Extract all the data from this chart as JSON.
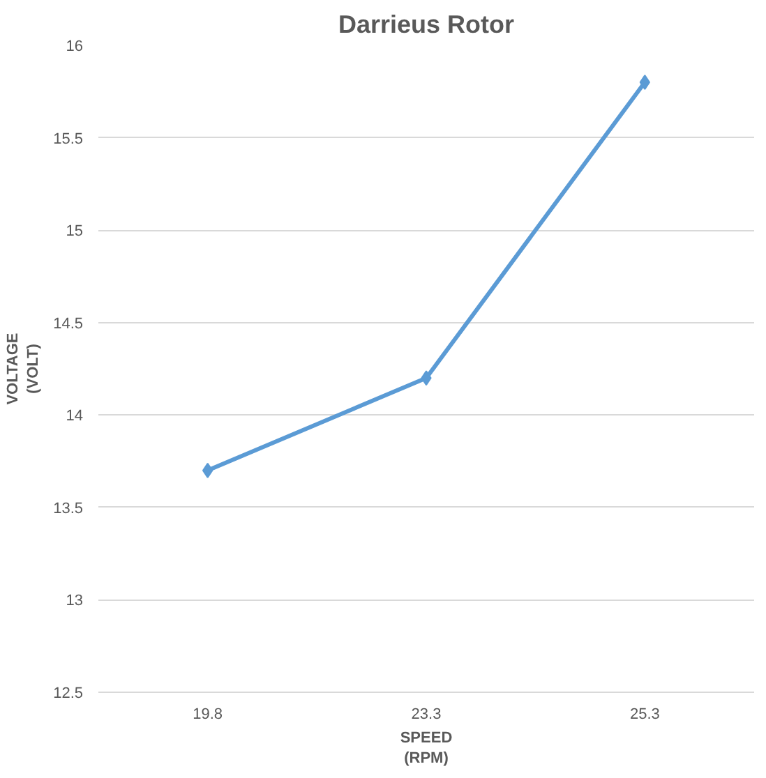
{
  "chart_data": {
    "type": "line",
    "title": "Darrieus Rotor",
    "xlabel": "SPEED\n(RPM)",
    "ylabel": "VOLTAGE\n(VOLT)",
    "categories": [
      "19.8",
      "23.3",
      "25.3"
    ],
    "series": [
      {
        "color": "#5b9bd5",
        "values": [
          13.7,
          14.2,
          15.8
        ]
      }
    ],
    "ylim": [
      12.5,
      16
    ],
    "yticks": [
      12.5,
      13,
      13.5,
      14,
      14.5,
      15,
      15.5,
      16
    ],
    "grid": "y",
    "marker": "diamond",
    "line_style": "solid"
  }
}
